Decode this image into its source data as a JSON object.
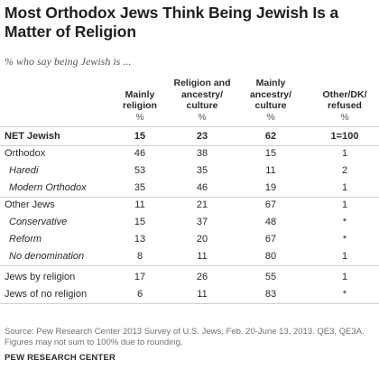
{
  "chart_data": {
    "type": "table",
    "title": "Most Orthodox Jews Think Being Jewish Is a Matter of Religion",
    "subtitle": "% who say being Jewish is ...",
    "columns": [
      {
        "label": "Mainly religion",
        "lines": [
          "Mainly",
          "religion"
        ]
      },
      {
        "label": "Religion and ancestry/ culture",
        "lines": [
          "Religion and",
          "ancestry/",
          "culture"
        ]
      },
      {
        "label": "Mainly ancestry/ culture",
        "lines": [
          "Mainly",
          "ancestry/",
          "culture"
        ]
      },
      {
        "label": "Other/DK/ refused",
        "lines": [
          "Other/DK/",
          "refused"
        ]
      }
    ],
    "units": [
      "%",
      "%",
      "%",
      "%"
    ],
    "rows": [
      {
        "label": "NET Jewish",
        "values": [
          "15",
          "23",
          "62",
          "1=100"
        ]
      },
      {
        "label": "Orthodox",
        "values": [
          "46",
          "38",
          "15",
          "1"
        ]
      },
      {
        "label": "Haredi",
        "values": [
          "53",
          "35",
          "11",
          "2"
        ]
      },
      {
        "label": "Modern Orthodox",
        "values": [
          "35",
          "46",
          "19",
          "1"
        ]
      },
      {
        "label": "Other Jews",
        "values": [
          "11",
          "21",
          "67",
          "1"
        ]
      },
      {
        "label": "Conservative",
        "values": [
          "15",
          "37",
          "48",
          "*"
        ]
      },
      {
        "label": "Reform",
        "values": [
          "13",
          "20",
          "67",
          "*"
        ]
      },
      {
        "label": "No denomination",
        "values": [
          "8",
          "11",
          "80",
          "1"
        ]
      },
      {
        "label": "Jews by religion",
        "values": [
          "17",
          "26",
          "55",
          "1"
        ]
      },
      {
        "label": "Jews of no religion",
        "values": [
          "6",
          "11",
          "83",
          "*"
        ]
      }
    ],
    "source": "Source: Pew Research Center 2013 Survey of U.S. Jews, Feb. 20-June 13, 2013. QE3, QE3A. Figures may not sum to 100% due to rounding.",
    "credit": "PEW RESEARCH CENTER"
  }
}
